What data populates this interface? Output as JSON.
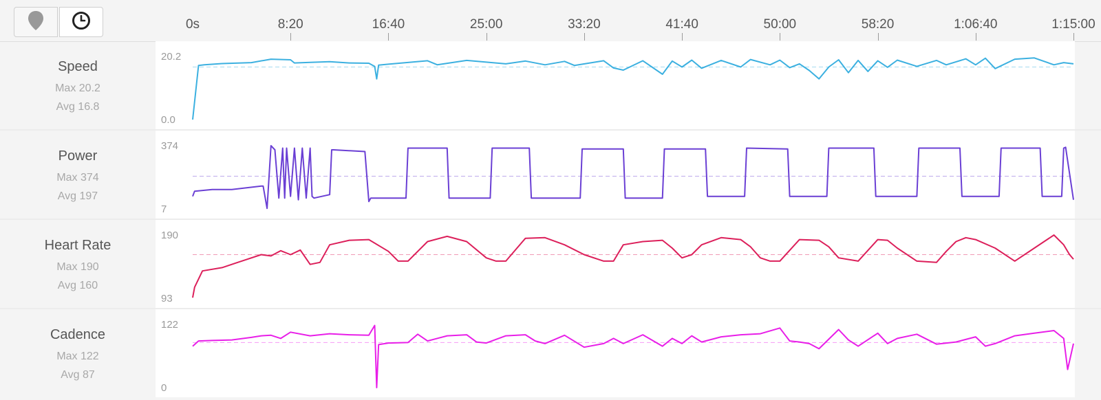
{
  "toolbar": {
    "map_icon": "map-pin-icon",
    "time_icon": "clock-icon"
  },
  "colors": {
    "speed": "#3bb0e0",
    "power": "#6a3fd4",
    "heart_rate": "#dc1f5a",
    "cadence": "#e81ee8"
  },
  "chart_data": [
    {
      "type": "line",
      "title": "Speed",
      "x_tick_labels": [
        "0s",
        "8:20",
        "16:40",
        "25:00",
        "33:20",
        "41:40",
        "50:00",
        "58:20",
        "1:06:40",
        "1:15:00"
      ],
      "x_ticks_sec": [
        0,
        500,
        1000,
        1500,
        2000,
        2500,
        3000,
        3500,
        4000,
        4500
      ],
      "y_tick_labels": [
        "20.2",
        "0.0"
      ],
      "ylim": [
        0,
        20.2
      ],
      "max_label": "Max 20.2",
      "avg_label": "Avg 16.8",
      "avg": 16.8,
      "x": [
        0,
        30,
        60,
        150,
        300,
        400,
        500,
        520,
        600,
        700,
        800,
        900,
        930,
        940,
        950,
        1000,
        1200,
        1250,
        1400,
        1600,
        1700,
        1800,
        1900,
        1950,
        2100,
        2150,
        2200,
        2300,
        2400,
        2450,
        2500,
        2550,
        2600,
        2700,
        2800,
        2850,
        2950,
        3000,
        3050,
        3100,
        3150,
        3200,
        3250,
        3300,
        3350,
        3400,
        3450,
        3500,
        3550,
        3600,
        3700,
        3800,
        3850,
        3950,
        4000,
        4050,
        4100,
        4200,
        4300,
        4400,
        4450,
        4500
      ],
      "y": [
        0,
        17.3,
        17.5,
        17.9,
        18.2,
        19.3,
        19.1,
        18.1,
        18.3,
        18.5,
        18.1,
        18.0,
        17.0,
        13.0,
        17.4,
        17.7,
        18.8,
        17.5,
        18.9,
        17.8,
        18.7,
        17.5,
        18.6,
        17.3,
        18.8,
        16.5,
        15.8,
        18.8,
        14.5,
        18.7,
        16.8,
        19.0,
        16.4,
        18.9,
        16.8,
        19.2,
        17.5,
        19.0,
        16.6,
        17.8,
        15.7,
        13.0,
        16.8,
        19.1,
        15.0,
        18.9,
        15.4,
        18.8,
        16.7,
        19.0,
        17.0,
        18.9,
        17.5,
        19.4,
        17.5,
        19.6,
        16.3,
        19.3,
        19.7,
        17.5,
        18.2,
        17.8
      ]
    },
    {
      "type": "line",
      "title": "Power",
      "y_tick_labels": [
        "374",
        "7"
      ],
      "ylim": [
        7,
        374
      ],
      "max_label": "Max 374",
      "avg_label": "Avg 197",
      "avg": 197,
      "x": [
        0,
        10,
        100,
        200,
        350,
        360,
        380,
        400,
        420,
        440,
        460,
        470,
        480,
        500,
        520,
        540,
        560,
        580,
        600,
        610,
        620,
        700,
        710,
        720,
        880,
        900,
        910,
        1090,
        1100,
        1300,
        1310,
        1520,
        1530,
        1720,
        1730,
        1980,
        1990,
        2200,
        2210,
        2400,
        2410,
        2620,
        2630,
        2820,
        2830,
        3040,
        3050,
        3240,
        3250,
        3480,
        3490,
        3700,
        3710,
        3920,
        3930,
        4120,
        4130,
        4330,
        4340,
        4440,
        4450,
        4460,
        4500
      ],
      "y": [
        80,
        110,
        120,
        120,
        140,
        140,
        10,
        374,
        350,
        70,
        360,
        70,
        360,
        80,
        360,
        60,
        360,
        70,
        360,
        80,
        70,
        90,
        350,
        350,
        340,
        50,
        70,
        70,
        360,
        360,
        70,
        70,
        360,
        360,
        70,
        70,
        355,
        355,
        70,
        70,
        355,
        355,
        80,
        80,
        360,
        355,
        80,
        80,
        360,
        360,
        80,
        80,
        360,
        360,
        80,
        80,
        360,
        360,
        80,
        80,
        360,
        365,
        60
      ]
    },
    {
      "type": "line",
      "title": "Heart Rate",
      "y_tick_labels": [
        "190",
        "93"
      ],
      "ylim": [
        93,
        190
      ],
      "max_label": "Max 190",
      "avg_label": "Avg 160",
      "avg": 160,
      "x": [
        0,
        10,
        50,
        150,
        250,
        350,
        400,
        450,
        500,
        550,
        600,
        650,
        700,
        800,
        900,
        1000,
        1050,
        1100,
        1200,
        1300,
        1400,
        1500,
        1550,
        1600,
        1700,
        1800,
        1900,
        2000,
        2100,
        2150,
        2200,
        2300,
        2400,
        2450,
        2500,
        2550,
        2600,
        2700,
        2800,
        2850,
        2900,
        2950,
        3000,
        3100,
        3200,
        3250,
        3300,
        3400,
        3500,
        3550,
        3600,
        3700,
        3800,
        3850,
        3900,
        3950,
        4000,
        4100,
        4200,
        4300,
        4350,
        4400,
        4450,
        4480,
        4500
      ],
      "y": [
        94,
        110,
        135,
        140,
        150,
        160,
        158,
        166,
        160,
        167,
        145,
        148,
        175,
        182,
        183,
        165,
        150,
        150,
        180,
        188,
        180,
        155,
        150,
        150,
        185,
        186,
        175,
        160,
        150,
        150,
        175,
        180,
        182,
        170,
        155,
        160,
        175,
        186,
        183,
        172,
        155,
        150,
        150,
        183,
        182,
        172,
        155,
        150,
        183,
        182,
        170,
        150,
        148,
        165,
        180,
        186,
        183,
        170,
        150,
        170,
        180,
        190,
        175,
        160,
        153
      ]
    },
    {
      "type": "line",
      "title": "Cadence",
      "y_tick_labels": [
        "122",
        "0"
      ],
      "ylim": [
        0,
        122
      ],
      "max_label": "Max 122",
      "avg_label": "Avg 87",
      "avg": 87,
      "x": [
        0,
        30,
        100,
        200,
        300,
        350,
        400,
        450,
        500,
        600,
        700,
        800,
        900,
        930,
        940,
        950,
        1000,
        1100,
        1150,
        1200,
        1300,
        1400,
        1450,
        1500,
        1600,
        1700,
        1750,
        1800,
        1900,
        2000,
        2100,
        2150,
        2200,
        2300,
        2400,
        2450,
        2500,
        2550,
        2600,
        2700,
        2800,
        2900,
        3000,
        3050,
        3100,
        3150,
        3200,
        3300,
        3350,
        3400,
        3500,
        3550,
        3600,
        3700,
        3800,
        3900,
        4000,
        4050,
        4100,
        4200,
        4300,
        4400,
        4450,
        4470,
        4500
      ],
      "y": [
        80,
        90,
        91,
        92,
        97,
        100,
        101,
        95,
        107,
        100,
        104,
        102,
        101,
        120,
        0,
        83,
        86,
        87,
        103,
        90,
        100,
        102,
        88,
        86,
        100,
        102,
        90,
        85,
        101,
        78,
        85,
        95,
        85,
        102,
        80,
        95,
        85,
        100,
        88,
        98,
        102,
        104,
        115,
        90,
        88,
        85,
        75,
        112,
        92,
        80,
        105,
        85,
        95,
        103,
        84,
        88,
        98,
        80,
        85,
        100,
        105,
        110,
        95,
        35,
        85
      ]
    }
  ]
}
